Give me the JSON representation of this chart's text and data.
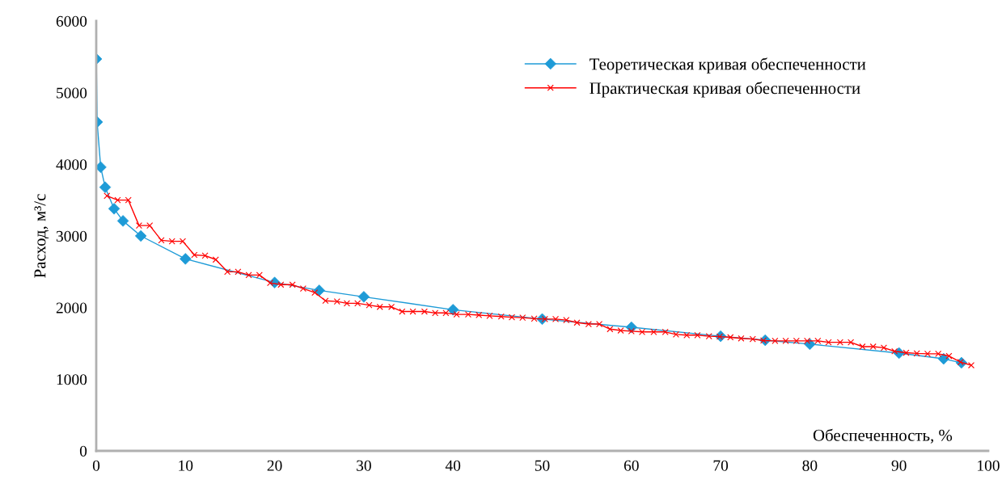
{
  "chart_data": {
    "type": "line",
    "xlabel": "Обеспеченность, %",
    "ylabel": "Расход, м³/с",
    "xlim": [
      0,
      100
    ],
    "xticks": [
      0,
      10,
      20,
      30,
      40,
      50,
      60,
      70,
      80,
      90,
      100
    ],
    "ylim": [
      0,
      6000
    ],
    "yticks": [
      0,
      1000,
      2000,
      3000,
      4000,
      5000,
      6000
    ],
    "grid": false,
    "legend": "top right",
    "series": [
      {
        "name": "Теоретическая кривая обеспеченности",
        "color": "#1e9bd7",
        "marker": "diamond",
        "x": [
          0.01,
          0.1,
          0.5,
          1,
          2,
          3,
          5,
          10,
          20,
          25,
          30,
          40,
          50,
          60,
          70,
          75,
          80,
          90,
          95,
          97
        ],
        "values": [
          5470,
          4590,
          3960,
          3680,
          3380,
          3210,
          3000,
          2680,
          2350,
          2240,
          2150,
          1970,
          1840,
          1725,
          1600,
          1545,
          1490,
          1365,
          1285,
          1230
        ]
      },
      {
        "name": "Практическая кривая обеспеченности",
        "color": "#ff0000",
        "marker": "cross",
        "x": [
          1.2,
          2.4,
          3.6,
          4.8,
          6.0,
          7.3,
          8.5,
          9.7,
          11.0,
          12.2,
          13.4,
          14.7,
          15.9,
          17.1,
          18.3,
          19.5,
          20.7,
          22.0,
          23.2,
          24.5,
          25.7,
          27.0,
          28.1,
          29.3,
          30.6,
          31.8,
          33.1,
          34.3,
          35.5,
          36.8,
          38.0,
          39.2,
          40.4,
          41.7,
          42.9,
          44.1,
          45.4,
          46.6,
          47.8,
          49.1,
          50.3,
          51.5,
          52.7,
          53.9,
          55.2,
          56.4,
          57.6,
          58.8,
          60.0,
          61.2,
          62.5,
          63.8,
          65.0,
          66.2,
          67.4,
          68.7,
          69.9,
          71.1,
          72.3,
          73.6,
          74.8,
          76.1,
          77.3,
          78.5,
          79.7,
          80.9,
          82.1,
          83.4,
          84.6,
          85.9,
          87.1,
          88.3,
          89.5,
          90.8,
          92.0,
          93.2,
          94.4,
          95.6,
          96.9,
          98.1
        ],
        "values": [
          3560,
          3500,
          3500,
          3145,
          3145,
          2940,
          2925,
          2925,
          2735,
          2725,
          2670,
          2500,
          2500,
          2455,
          2455,
          2345,
          2320,
          2320,
          2265,
          2210,
          2095,
          2085,
          2060,
          2060,
          2035,
          2010,
          2010,
          1945,
          1945,
          1945,
          1925,
          1925,
          1905,
          1905,
          1895,
          1885,
          1875,
          1865,
          1860,
          1845,
          1840,
          1840,
          1825,
          1790,
          1770,
          1770,
          1700,
          1680,
          1670,
          1660,
          1660,
          1660,
          1625,
          1615,
          1615,
          1600,
          1595,
          1585,
          1570,
          1560,
          1540,
          1535,
          1535,
          1535,
          1535,
          1535,
          1515,
          1515,
          1515,
          1455,
          1455,
          1440,
          1390,
          1370,
          1360,
          1355,
          1355,
          1325,
          1240,
          1195
        ]
      }
    ]
  }
}
